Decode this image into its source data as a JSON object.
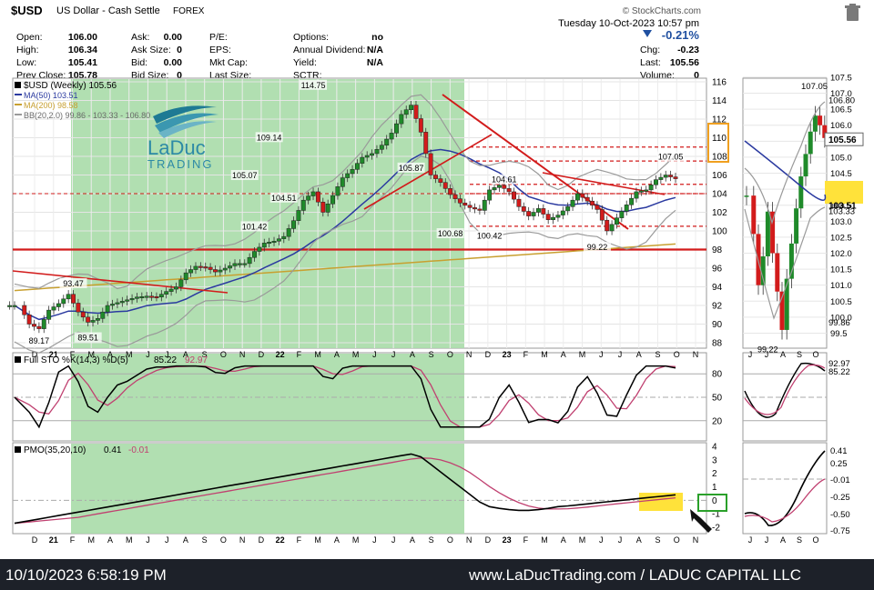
{
  "header": {
    "symbol": "$USD",
    "name": "US Dollar - Cash Settle",
    "exchange": "FOREX",
    "source": "© StockCharts.com",
    "date": "Tuesday  10-Oct-2023  10:57 pm",
    "change_pct": "-0.21%",
    "stats_col1": [
      [
        "Open:",
        "106.00"
      ],
      [
        "High:",
        "106.34"
      ],
      [
        "Low:",
        "105.41"
      ],
      [
        "Prev Close:",
        "105.78"
      ]
    ],
    "stats_col2": [
      [
        "Ask:",
        "0.00"
      ],
      [
        "Ask Size:",
        "0"
      ],
      [
        "Bid:",
        "0.00"
      ],
      [
        "Bid Size:",
        "0"
      ]
    ],
    "stats_col3": [
      [
        "P/E:",
        ""
      ],
      [
        "EPS:",
        ""
      ],
      [
        "Mkt Cap:",
        ""
      ],
      [
        "Last Size:",
        ""
      ]
    ],
    "stats_col4": [
      [
        "Options:",
        "no"
      ],
      [
        "Annual Dividend:",
        "N/A"
      ],
      [
        "Yield:",
        "N/A"
      ],
      [
        "SCTR:",
        ""
      ]
    ],
    "stats_col5": [
      [
        "Chg:",
        "-0.23"
      ],
      [
        "Last:",
        "105.56"
      ],
      [
        "Volume:",
        "0"
      ]
    ]
  },
  "legend": {
    "main": "$USD (Weekly) 105.56",
    "ma50": "MA(50) 103.51",
    "ma200": "MA(200) 98.58",
    "bb": "BB(20,2.0) 99.86 - 103.33 - 106.80",
    "sto_label": "Full STO %K(14,3) %D(5)",
    "sto_k": "85.22",
    "sto_d": "92.97",
    "pmo_label": "PMO(35,20,10)",
    "pmo_val": "0.41",
    "pmo_sig": "-0.01"
  },
  "logo": {
    "line1": "LaDuc",
    "line2": "TRADING"
  },
  "footer": {
    "left": "10/10/2023 6:58:19 PM",
    "right": "www.LaDucTrading.com / LADUC CAPITAL LLC"
  },
  "colors": {
    "up": "#1f8a2a",
    "down": "#d21b1b",
    "ma50": "#2b3aa0",
    "ma200": "#c8a030",
    "bb": "#9a9a9a",
    "shade": "#a8dca8",
    "highlight": "#ffe23a",
    "pmo_sig": "#c04070",
    "box_orange": "#f0a020",
    "box_green": "#2aa02a",
    "accent_blue": "#1f4fa0"
  },
  "chart_data": {
    "type": "candlestick",
    "main": {
      "ylim": [
        88,
        116
      ],
      "ticks": [
        "116",
        "114",
        "112",
        "110",
        "108",
        "106",
        "104",
        "102",
        "100",
        "98",
        "96",
        "94",
        "92",
        "90",
        "88"
      ],
      "x_labels": [
        "D",
        "21",
        "F",
        "M",
        "A",
        "M",
        "J",
        "J",
        "A",
        "S",
        "O",
        "N",
        "D",
        "22",
        "F",
        "M",
        "A",
        "M",
        "J",
        "J",
        "A",
        "S",
        "O",
        "N",
        "D",
        "23",
        "F",
        "M",
        "A",
        "M",
        "J",
        "J",
        "A",
        "S",
        "O",
        "N"
      ],
      "annotations": [
        {
          "label": "89.17",
          "value": 89.17
        },
        {
          "label": "93.47",
          "value": 93.47
        },
        {
          "label": "89.51",
          "value": 89.51
        },
        {
          "label": "105.07",
          "value": 105.07
        },
        {
          "label": "101.42",
          "value": 101.42
        },
        {
          "label": "109.14",
          "value": 109.14
        },
        {
          "label": "104.51",
          "value": 104.51
        },
        {
          "label": "114.75",
          "value": 114.75
        },
        {
          "label": "105.87",
          "value": 105.87
        },
        {
          "label": "100.68",
          "value": 100.68
        },
        {
          "label": "104.61",
          "value": 104.61
        },
        {
          "label": "100.42",
          "value": 100.42
        },
        {
          "label": "99.22",
          "value": 99.22
        },
        {
          "label": "107.05",
          "value": 107.05
        }
      ],
      "key_levels": [
        98.0,
        100.5,
        104.0,
        105.0,
        107.5,
        109.0
      ],
      "highlight_box": "110 / 108"
    },
    "weekly_close_path": [
      [
        0,
        92.0
      ],
      [
        3,
        90.0
      ],
      [
        5,
        89.5
      ],
      [
        7,
        91.5
      ],
      [
        9,
        92.2
      ],
      [
        11,
        93.2
      ],
      [
        13,
        91.3
      ],
      [
        15,
        90.2
      ],
      [
        17,
        90.6
      ],
      [
        19,
        92.0
      ],
      [
        21,
        92.3
      ],
      [
        23,
        92.6
      ],
      [
        25,
        92.9
      ],
      [
        27,
        93.0
      ],
      [
        29,
        92.9
      ],
      [
        31,
        93.5
      ],
      [
        33,
        94.0
      ],
      [
        35,
        95.5
      ],
      [
        37,
        96.2
      ],
      [
        39,
        96.1
      ],
      [
        41,
        95.6
      ],
      [
        43,
        96.0
      ],
      [
        45,
        96.5
      ],
      [
        47,
        96.5
      ],
      [
        49,
        97.8
      ],
      [
        51,
        98.7
      ],
      [
        53,
        98.9
      ],
      [
        55,
        99.4
      ],
      [
        57,
        101.1
      ],
      [
        59,
        103.3
      ],
      [
        61,
        104.2
      ],
      [
        63,
        102.0
      ],
      [
        65,
        103.8
      ],
      [
        67,
        105.7
      ],
      [
        69,
        106.6
      ],
      [
        71,
        107.9
      ],
      [
        73,
        108.3
      ],
      [
        75,
        109.2
      ],
      [
        77,
        110.5
      ],
      [
        79,
        112.5
      ],
      [
        81,
        113.5
      ],
      [
        83,
        110.6
      ],
      [
        85,
        106.0
      ],
      [
        87,
        105.2
      ],
      [
        89,
        103.9
      ],
      [
        91,
        103.0
      ],
      [
        93,
        102.5
      ],
      [
        95,
        102.2
      ],
      [
        97,
        104.4
      ],
      [
        99,
        104.9
      ],
      [
        101,
        104.2
      ],
      [
        103,
        102.6
      ],
      [
        105,
        101.6
      ],
      [
        107,
        102.4
      ],
      [
        109,
        101.2
      ],
      [
        111,
        101.7
      ],
      [
        113,
        102.6
      ],
      [
        115,
        104.0
      ],
      [
        117,
        103.2
      ],
      [
        119,
        102.3
      ],
      [
        121,
        100.0
      ],
      [
        123,
        101.4
      ],
      [
        125,
        102.8
      ],
      [
        127,
        104.2
      ],
      [
        129,
        104.4
      ],
      [
        131,
        105.5
      ],
      [
        133,
        106.0
      ],
      [
        135,
        105.6
      ]
    ],
    "sto": {
      "ticks": [
        "80",
        "50",
        "20"
      ],
      "ylim": [
        0,
        100
      ],
      "k": 85.22,
      "d": 92.97
    },
    "pmo": {
      "ticks": [
        "4",
        "3",
        "2",
        "1",
        "0",
        "-1",
        "-2"
      ],
      "ylim": [
        -2.2,
        4
      ],
      "value": 0.41,
      "signal": -0.01
    },
    "side": {
      "ticks": [
        "107.5",
        "107.0",
        "106.5",
        "106.0",
        "105.5",
        "105.0",
        "104.5",
        "104.0",
        "103.5",
        "103.0",
        "102.5",
        "102.0",
        "101.5",
        "101.0",
        "100.5",
        "100.0",
        "99.5"
      ],
      "ylim": [
        99.2,
        107.3
      ],
      "labels": {
        "high": "107.05",
        "bb_upper": "106.80",
        "last": "105.56",
        "ma50": "103.51",
        "bb_mid": "103.33",
        "bb_lower": "99.86",
        "low": "99.22"
      },
      "x_labels": [
        "J",
        "J",
        "A",
        "S",
        "O"
      ],
      "sto_ticks": [
        "92.97",
        "85.22"
      ],
      "pmo_ticks": [
        "0.41",
        "0.25",
        "-0.01",
        "-0.25",
        "-0.50",
        "-0.75"
      ]
    }
  }
}
